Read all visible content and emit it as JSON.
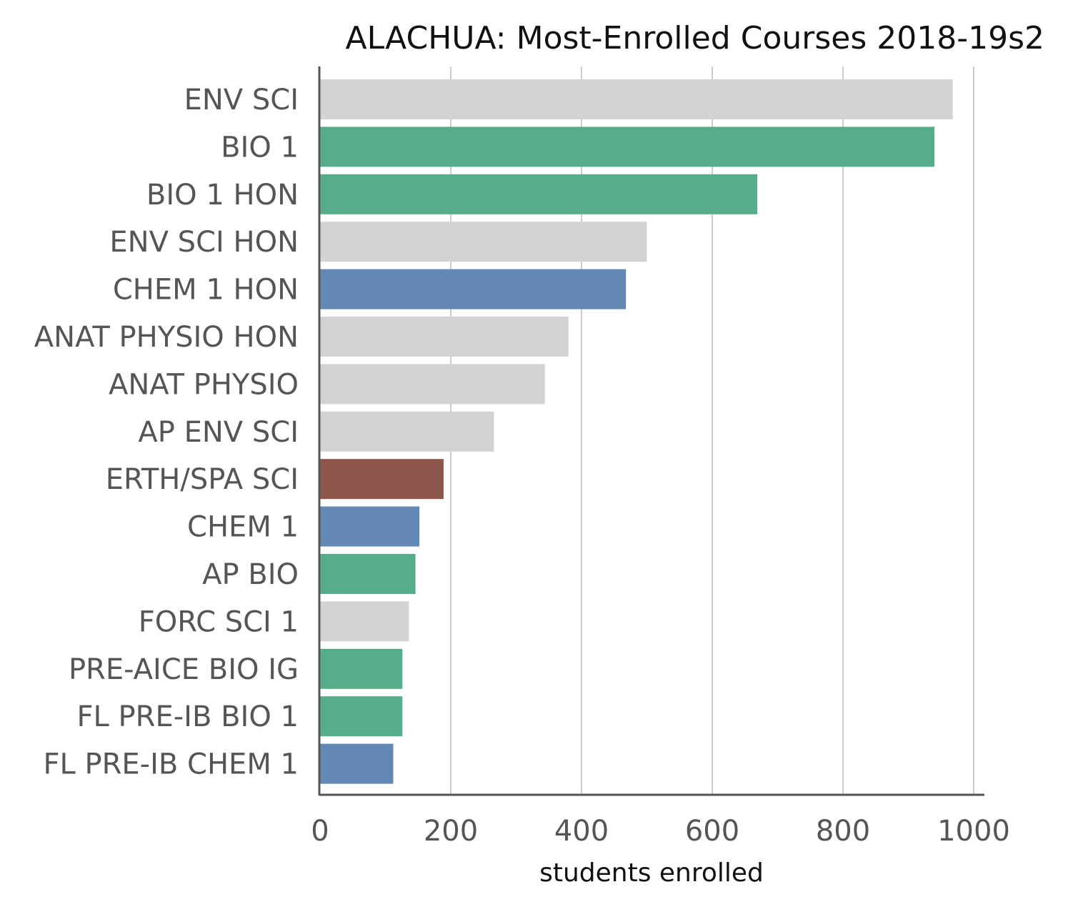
{
  "chart_data": {
    "type": "bar",
    "orientation": "horizontal",
    "title": "ALACHUA: Most-Enrolled Courses 2018-19s2",
    "xlabel": "students enrolled",
    "ylabel": "",
    "xlim": [
      0,
      1000
    ],
    "xticks": [
      "0",
      "200",
      "400",
      "600",
      "800",
      "1000"
    ],
    "grid": "vertical",
    "categories": [
      "ENV SCI",
      "BIO 1",
      "BIO 1 HON",
      "ENV SCI HON",
      "CHEM 1 HON",
      "ANAT PHYSIO HON",
      "ANAT PHYSIO",
      "AP ENV SCI",
      "ERTH/SPA SCI",
      "CHEM 1",
      "AP BIO",
      "FORC SCI 1",
      "PRE-AICE BIO IG",
      "FL PRE-IB BIO 1",
      "FL PRE-IB CHEM 1"
    ],
    "values": [
      968,
      940,
      669,
      500,
      468,
      380,
      344,
      266,
      189,
      152,
      146,
      136,
      126,
      126,
      112
    ],
    "colors": [
      "#d3d3d3",
      "#55ad89",
      "#55ad89",
      "#d3d3d3",
      "#6388b4",
      "#d3d3d3",
      "#d3d3d3",
      "#d3d3d3",
      "#8c564b",
      "#6388b4",
      "#55ad89",
      "#d3d3d3",
      "#55ad89",
      "#55ad89",
      "#6388b4"
    ]
  }
}
